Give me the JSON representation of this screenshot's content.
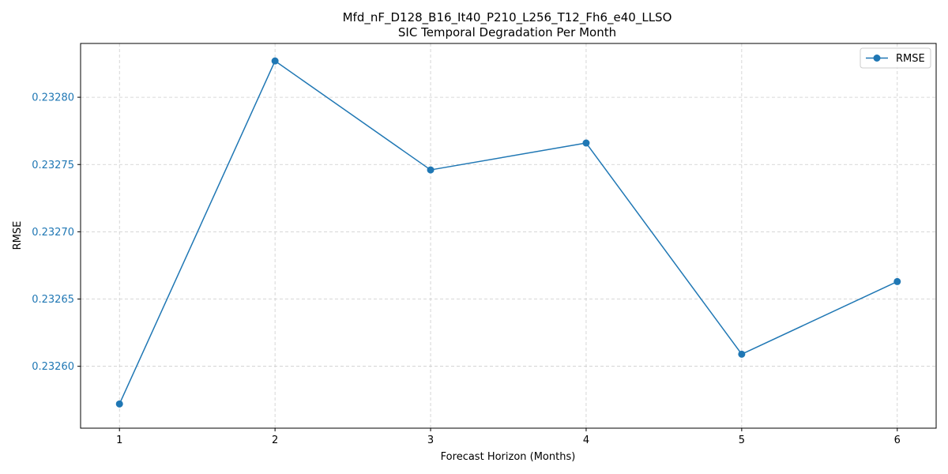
{
  "chart_data": {
    "type": "line",
    "title": "Mfd_nF_D128_B16_It40_P210_L256_T12_Fh6_e40_LLSO",
    "subtitle": "SIC Temporal Degradation Per Month",
    "xlabel": "Forecast Horizon (Months)",
    "ylabel": "RMSE",
    "x": [
      1,
      2,
      3,
      4,
      5,
      6
    ],
    "series": [
      {
        "name": "RMSE",
        "color": "#1f77b4",
        "values": [
          0.232572,
          0.232827,
          0.232746,
          0.232766,
          0.232609,
          0.232663
        ]
      }
    ],
    "xlim": [
      0.75,
      6.25
    ],
    "ylim": [
      0.232554,
      0.23284
    ],
    "xticks": [
      1,
      2,
      3,
      4,
      5,
      6
    ],
    "xtick_labels": [
      "1",
      "2",
      "3",
      "4",
      "5",
      "6"
    ],
    "yticks": [
      0.2326,
      0.23265,
      0.2327,
      0.23275,
      0.2328
    ],
    "ytick_labels": [
      "0.23260",
      "0.23265",
      "0.23270",
      "0.23275",
      "0.23280"
    ],
    "ytick_color": "#1f77b4",
    "grid": true,
    "legend_position": "top-right",
    "marker": "circle"
  }
}
